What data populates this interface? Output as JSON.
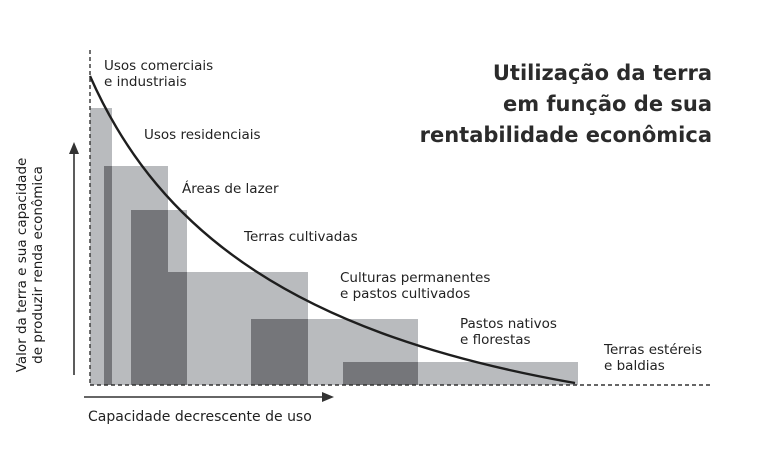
{
  "title": {
    "line1": "Utilização da terra",
    "line2": "em função de sua",
    "line3": "rentabilidade econômica"
  },
  "axes": {
    "y_label_line1": "Valor da terra e sua capacidade",
    "y_label_line2": "de produzir renda econômica",
    "x_label": "Capacidade decrescente de uso"
  },
  "categories": [
    {
      "line1": "Usos comerciais",
      "line2": "e industriais"
    },
    {
      "line1": "Usos residenciais",
      "line2": ""
    },
    {
      "line1": "Áreas de lazer",
      "line2": ""
    },
    {
      "line1": "Terras cultivadas",
      "line2": ""
    },
    {
      "line1": "Culturas permanentes",
      "line2": "e pastos cultivados"
    },
    {
      "line1": "Pastos nativos",
      "line2": "e florestas"
    },
    {
      "line1": "Terras estéreis",
      "line2": "e baldias"
    }
  ],
  "colors": {
    "light_fill": "#b9bbbe",
    "dark_fill": "#75767a",
    "curve": "#1e1e1e",
    "axis": "#333333"
  }
}
